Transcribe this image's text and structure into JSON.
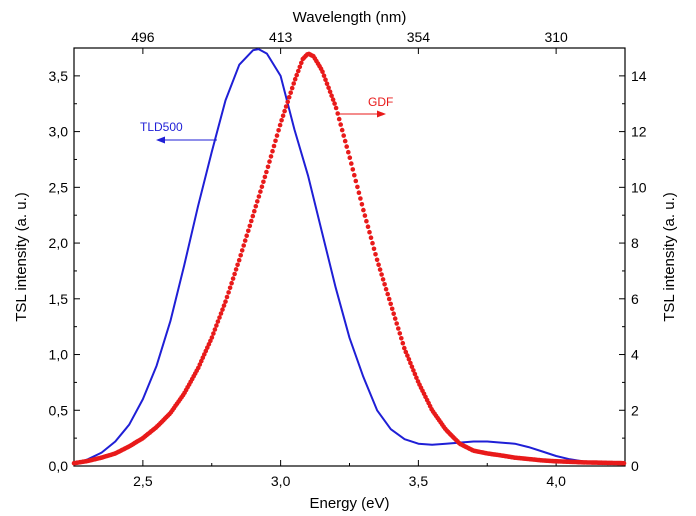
{
  "chart_data": {
    "type": "line",
    "xlabel": "Energy (eV)",
    "x_top_label": "Wavelength (nm)",
    "ylabel_left": "TSL intensity (a. u.)",
    "ylabel_right": "TSL intensity (a. u.)",
    "xlim": [
      2.25,
      4.25
    ],
    "ylim_left": [
      0,
      3.75
    ],
    "ylim_right": [
      0,
      15
    ],
    "x_ticks": [
      "2,5",
      "3,0",
      "3,5",
      "4,0"
    ],
    "x_tick_values": [
      2.5,
      3.0,
      3.5,
      4.0
    ],
    "y_left_ticks": [
      "0,0",
      "0,5",
      "1,0",
      "1,5",
      "2,0",
      "2,5",
      "3,0",
      "3,5"
    ],
    "y_left_tick_values": [
      0,
      0.5,
      1.0,
      1.5,
      2.0,
      2.5,
      3.0,
      3.5
    ],
    "y_right_ticks": [
      "0",
      "2",
      "4",
      "6",
      "8",
      "10",
      "12",
      "14"
    ],
    "y_right_tick_values": [
      0,
      2,
      4,
      6,
      8,
      10,
      12,
      14
    ],
    "x_top_ticks": [
      "496",
      "413",
      "354",
      "310"
    ],
    "x_top_tick_energies": [
      2.5,
      3.0,
      3.5,
      4.0
    ],
    "grid": false,
    "series": [
      {
        "name": "TLD500",
        "axis": "left",
        "style": "line",
        "color": "#1f1fd6",
        "x": [
          2.25,
          2.3,
          2.35,
          2.4,
          2.45,
          2.5,
          2.55,
          2.6,
          2.65,
          2.7,
          2.75,
          2.8,
          2.85,
          2.9,
          2.92,
          2.95,
          3.0,
          3.05,
          3.1,
          3.15,
          3.2,
          3.25,
          3.3,
          3.35,
          3.4,
          3.45,
          3.5,
          3.55,
          3.6,
          3.65,
          3.7,
          3.75,
          3.8,
          3.85,
          3.9,
          3.95,
          4.0,
          4.05,
          4.1,
          4.15,
          4.2,
          4.25
        ],
        "y": [
          0.02,
          0.06,
          0.12,
          0.22,
          0.37,
          0.6,
          0.9,
          1.3,
          1.8,
          2.33,
          2.82,
          3.28,
          3.6,
          3.73,
          3.74,
          3.7,
          3.5,
          3.02,
          2.6,
          2.1,
          1.6,
          1.15,
          0.8,
          0.5,
          0.33,
          0.24,
          0.2,
          0.19,
          0.2,
          0.21,
          0.22,
          0.22,
          0.21,
          0.2,
          0.17,
          0.13,
          0.09,
          0.06,
          0.04,
          0.03,
          0.02,
          0.02
        ]
      },
      {
        "name": "GDF",
        "axis": "right",
        "style": "points",
        "color": "#e81a1a",
        "x": [
          2.25,
          2.3,
          2.35,
          2.4,
          2.45,
          2.5,
          2.55,
          2.6,
          2.65,
          2.7,
          2.75,
          2.8,
          2.85,
          2.9,
          2.95,
          3.0,
          3.05,
          3.08,
          3.1,
          3.12,
          3.15,
          3.2,
          3.25,
          3.3,
          3.35,
          3.4,
          3.45,
          3.5,
          3.55,
          3.6,
          3.65,
          3.7,
          3.75,
          3.8,
          3.85,
          3.9,
          3.95,
          4.0,
          4.05,
          4.1,
          4.15,
          4.2,
          4.25
        ],
        "y": [
          0.1,
          0.18,
          0.3,
          0.45,
          0.7,
          1.0,
          1.4,
          1.9,
          2.6,
          3.5,
          4.6,
          5.9,
          7.4,
          9.0,
          10.6,
          12.3,
          13.8,
          14.6,
          14.8,
          14.7,
          14.2,
          12.9,
          11.1,
          9.2,
          7.4,
          5.8,
          4.2,
          3.0,
          2.0,
          1.3,
          0.8,
          0.55,
          0.45,
          0.38,
          0.3,
          0.25,
          0.2,
          0.17,
          0.15,
          0.13,
          0.12,
          0.11,
          0.1
        ]
      }
    ],
    "annotations": [
      {
        "text": "TLD500",
        "arrow": "left",
        "color": "#1f1fd6"
      },
      {
        "text": "GDF",
        "arrow": "right",
        "color": "#e81a1a"
      }
    ]
  }
}
